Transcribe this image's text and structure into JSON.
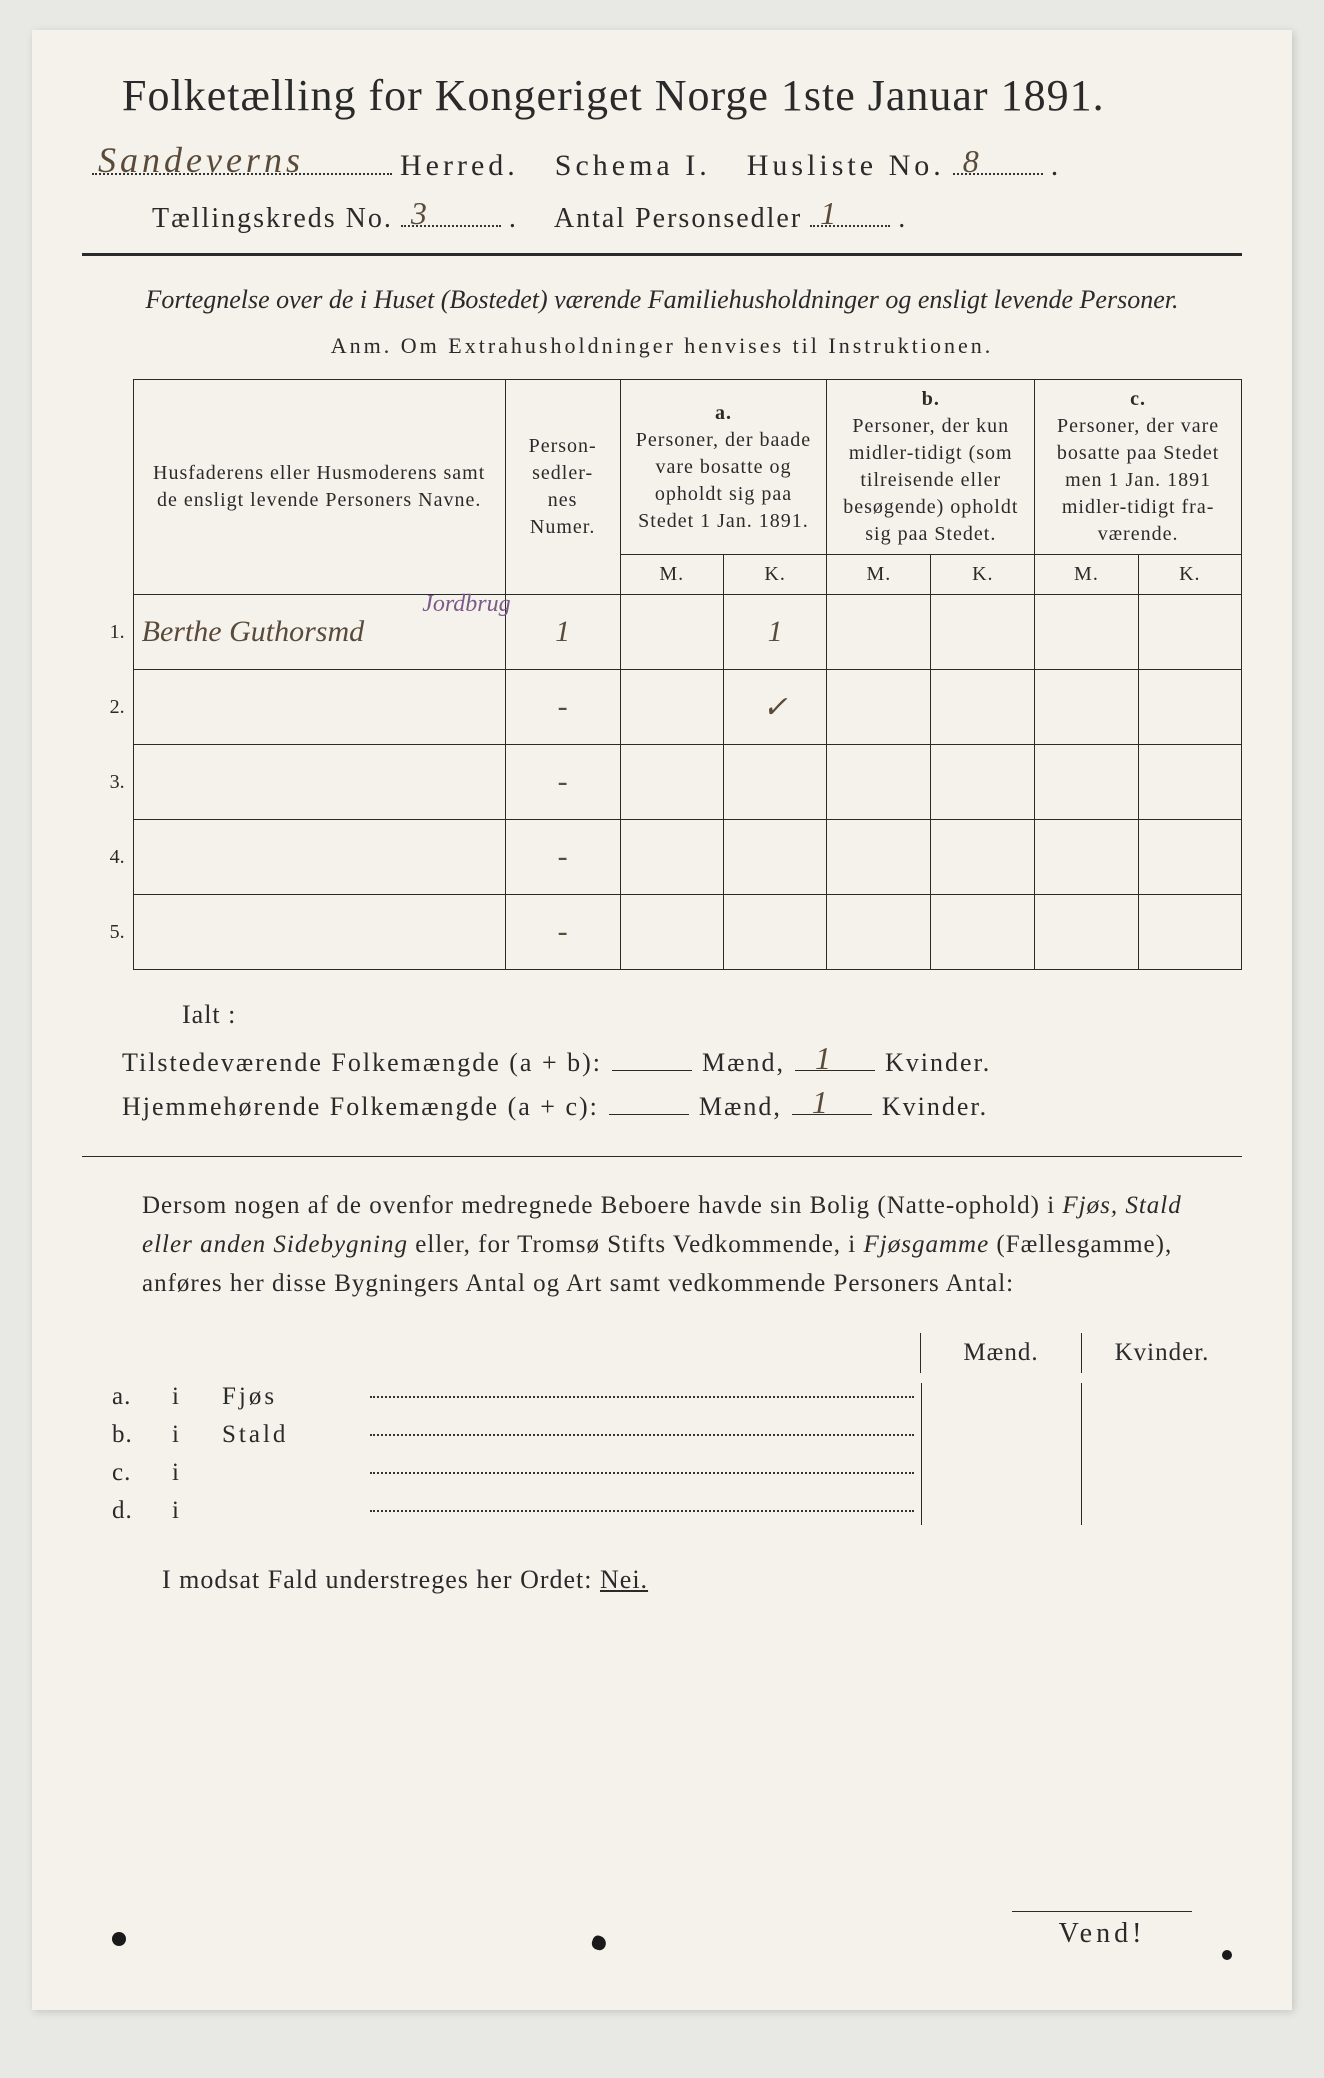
{
  "header": {
    "title": "Folketælling for Kongeriget Norge 1ste Januar 1891.",
    "herred_hw": "Sandeverns",
    "herred_label": "Herred.",
    "schema_label": "Schema I.",
    "husliste_label": "Husliste No.",
    "husliste_hw": "8",
    "kreds_label": "Tællingskreds No.",
    "kreds_hw": "3",
    "antal_label": "Antal Personsedler",
    "antal_hw": "1"
  },
  "subhead": "Fortegnelse over de i Huset (Bostedet) værende Familiehusholdninger og ensligt levende Personer.",
  "anm": "Anm.    Om Extrahusholdninger henvises til Instruktionen.",
  "table": {
    "col_name": "Husfaderens eller Husmoderens samt de ensligt levende Personers Navne.",
    "col_num": "Person-\nsedler-\nnes\nNumer.",
    "col_a_top": "a.",
    "col_a": "Personer, der baade vare bosatte og opholdt sig paa Stedet 1 Jan. 1891.",
    "col_b_top": "b.",
    "col_b": "Personer, der kun midler-tidigt (som tilreisende eller besøgende) opholdt sig paa Stedet.",
    "col_c_top": "c.",
    "col_c": "Personer, der vare bosatte paa Stedet men 1 Jan. 1891 midler-tidigt fra-værende.",
    "m": "M.",
    "k": "K.",
    "rows": [
      {
        "n": "1.",
        "name": "Berthe Guthorsmd",
        "num": "1",
        "aM": "",
        "aK": "1",
        "bM": "",
        "bK": "",
        "cM": "",
        "cK": "",
        "note": "Jordbrug"
      },
      {
        "n": "2.",
        "name": "",
        "num": "-",
        "aM": "",
        "aK": "✓",
        "bM": "",
        "bK": "",
        "cM": "",
        "cK": "",
        "note": ""
      },
      {
        "n": "3.",
        "name": "",
        "num": "-",
        "aM": "",
        "aK": "",
        "bM": "",
        "bK": "",
        "cM": "",
        "cK": "",
        "note": ""
      },
      {
        "n": "4.",
        "name": "",
        "num": "-",
        "aM": "",
        "aK": "",
        "bM": "",
        "bK": "",
        "cM": "",
        "cK": "",
        "note": ""
      },
      {
        "n": "5.",
        "name": "",
        "num": "-",
        "aM": "",
        "aK": "",
        "bM": "",
        "bK": "",
        "cM": "",
        "cK": "",
        "note": ""
      }
    ]
  },
  "ialt": "Ialt :",
  "sum1_label": "Tilstedeværende Folkemængde (a + b):",
  "sum2_label": "Hjemmehørende Folkemængde (a + c):",
  "maend": "Mænd,",
  "kvinder": "Kvinder.",
  "sum1_m": "",
  "sum1_k": "1",
  "sum2_m": "",
  "sum2_k": "1",
  "para": "Dersom nogen af de ovenfor medregnede Beboere havde sin Bolig (Natte-ophold) i Fjøs, Stald eller anden Sidebygning eller, for Tromsø Stifts Vedkommende, i Fjøsgamme (Fællesgamme), anføres her disse Bygningers Antal og Art samt vedkommende Personers Antal:",
  "bygn_head_m": "Mænd.",
  "bygn_head_k": "Kvinder.",
  "bygn": [
    {
      "l": "a.",
      "i": "i",
      "name": "Fjøs"
    },
    {
      "l": "b.",
      "i": "i",
      "name": "Stald"
    },
    {
      "l": "c.",
      "i": "i",
      "name": ""
    },
    {
      "l": "d.",
      "i": "i",
      "name": ""
    }
  ],
  "modsat": "I modsat Fald understreges her Ordet: ",
  "nei": "Nei.",
  "vend": "Vend!",
  "colors": {
    "paper": "#f4f2ea",
    "ink": "#2a2a2a",
    "handwriting": "#5a4a3a",
    "purple_ink": "#7a5a8a"
  }
}
